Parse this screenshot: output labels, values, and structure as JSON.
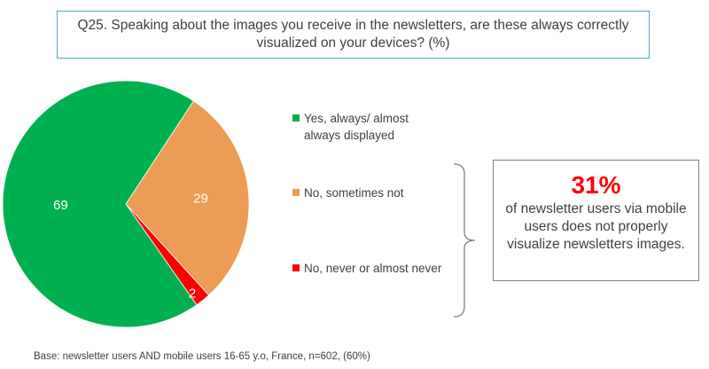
{
  "question": "Q25. Speaking about the images you receive in the newsletters, are these always correctly visualized on your devices? (%)",
  "chart_data": {
    "type": "pie",
    "title": "Q25. Speaking about the images you receive in the newsletters, are these always correctly visualized on your devices? (%)",
    "categories": [
      "Yes, always/ almost always displayed",
      "No, sometimes not",
      "No, never or almost never"
    ],
    "values": [
      69,
      29,
      2
    ],
    "colors": [
      "#00b050",
      "#ed9c55",
      "#ff0000"
    ],
    "data_labels": [
      "69",
      "29",
      "2"
    ],
    "legend_position": "right"
  },
  "legend": [
    {
      "label": "Yes, always/ almost\nalways displayed",
      "color": "#00b050"
    },
    {
      "label": "No, sometimes not",
      "color": "#ed9c55"
    },
    {
      "label": "No, never or almost never",
      "color": "#ff0000"
    }
  ],
  "callout": {
    "percent": "31%",
    "text": "of newsletter users via mobile users does not properly visualize newsletters images."
  },
  "base_note": "Base: newsletter users AND mobile users 16-65 y.o, France, n=602, (60%)"
}
